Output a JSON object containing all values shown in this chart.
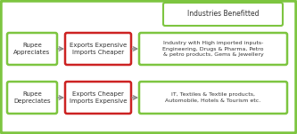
{
  "bg_outer": "#e8f5e0",
  "bg_inner": "#ffffff",
  "outer_border_color": "#7dc540",
  "title": "Industries Benefitted",
  "title_border_color": "#7dc540",
  "row1": {
    "box1_text": "Rupee\nAppreciates",
    "box1_color": "#7dc540",
    "box2_text": "Exports Expensive\nImports Cheaper",
    "box2_color": "#cc2222",
    "box3_text": "Industry with High imported inputs-\nEngineering, Drugs & Pharma, Petro\n& petro products, Gems & Jewellery",
    "box3_color": "#7dc540"
  },
  "row2": {
    "box1_text": "Rupee\nDepreciates",
    "box1_color": "#7dc540",
    "box2_text": "Exports Cheaper\nImports Expensive",
    "box2_color": "#cc2222",
    "box3_text": "IT, Textiles & Textile products,\nAutomobile, Hotels & Tourism etc.",
    "box3_color": "#7dc540"
  },
  "arrow_color": "#888888",
  "font_color": "#333333",
  "figsize": [
    3.33,
    1.51
  ],
  "dpi": 100
}
